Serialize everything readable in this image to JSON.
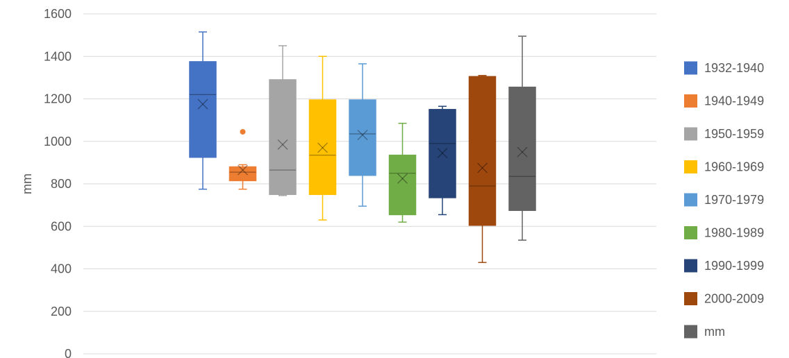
{
  "chart_data": {
    "type": "box",
    "title": "",
    "xlabel": "",
    "ylabel": "mm",
    "ylim": [
      0,
      1600
    ],
    "yticks": [
      0,
      200,
      400,
      600,
      800,
      1000,
      1200,
      1400,
      1600
    ],
    "grid": true,
    "legend_position": "right",
    "series": [
      {
        "name": "1932-1940",
        "color": "#4472C4",
        "min": 775,
        "q1": 925,
        "median": 1220,
        "q3": 1375,
        "max": 1515,
        "mean": 1175,
        "outliers": []
      },
      {
        "name": "1940-1949",
        "color": "#ED7D31",
        "min": 775,
        "q1": 815,
        "median": 855,
        "q3": 880,
        "max": 890,
        "mean": 865,
        "outliers": [
          1045
        ]
      },
      {
        "name": "1950-1959",
        "color": "#A5A5A5",
        "min": 745,
        "q1": 750,
        "median": 865,
        "q3": 1290,
        "max": 1450,
        "mean": 985,
        "outliers": []
      },
      {
        "name": "1960-1969",
        "color": "#FFC000",
        "min": 630,
        "q1": 750,
        "median": 935,
        "q3": 1195,
        "max": 1400,
        "mean": 970,
        "outliers": []
      },
      {
        "name": "1970-1979",
        "color": "#5B9BD5",
        "min": 695,
        "q1": 840,
        "median": 1035,
        "q3": 1195,
        "max": 1365,
        "mean": 1030,
        "outliers": []
      },
      {
        "name": "1980-1989",
        "color": "#70AD47",
        "min": 620,
        "q1": 655,
        "median": 850,
        "q3": 935,
        "max": 1085,
        "mean": 825,
        "outliers": []
      },
      {
        "name": "1990-1999",
        "color": "#264478",
        "min": 655,
        "q1": 735,
        "median": 990,
        "q3": 1150,
        "max": 1165,
        "mean": 945,
        "outliers": []
      },
      {
        "name": "2000-2009",
        "color": "#9E480E",
        "min": 430,
        "q1": 605,
        "median": 790,
        "q3": 1305,
        "max": 1310,
        "mean": 875,
        "outliers": []
      },
      {
        "name": "mm",
        "color": "#636363",
        "min": 535,
        "q1": 675,
        "median": 835,
        "q3": 1255,
        "max": 1495,
        "mean": 950,
        "outliers": []
      }
    ]
  }
}
